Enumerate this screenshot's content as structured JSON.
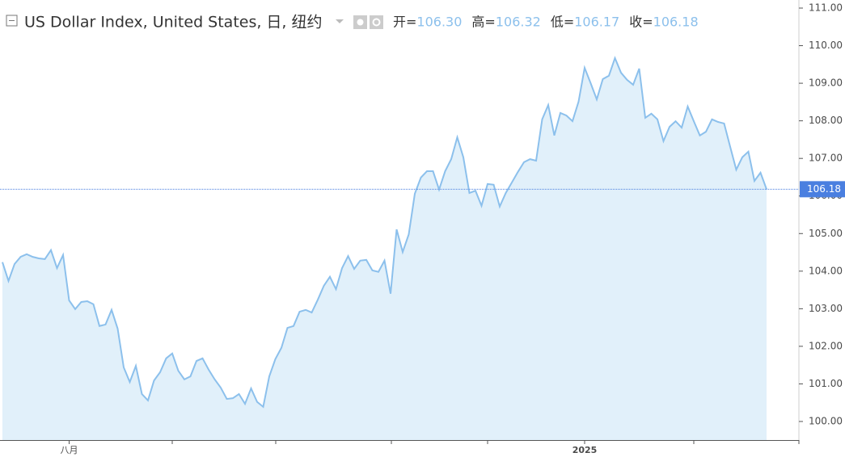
{
  "chart_data": {
    "type": "area",
    "title": "US Dollar Index, United States, 日, 纽约",
    "ohlc": [
      {
        "label": "开=",
        "value": "106.30"
      },
      {
        "label": "高=",
        "value": "106.32"
      },
      {
        "label": "低=",
        "value": "106.17"
      },
      {
        "label": "收=",
        "value": "106.18"
      }
    ],
    "categories": [
      null,
      null,
      null,
      null,
      null,
      null,
      null,
      null,
      null,
      null,
      null,
      "八月",
      null,
      null,
      null,
      null,
      null,
      null,
      null,
      null,
      null,
      null,
      null,
      null,
      null,
      null,
      null,
      null,
      null,
      null,
      null,
      null,
      null,
      null,
      null,
      null,
      null,
      null,
      null,
      null,
      null,
      null,
      null,
      null,
      null,
      null,
      null,
      null,
      null,
      null,
      null,
      null,
      null,
      null,
      null,
      null,
      null,
      null,
      null,
      null,
      null,
      null,
      null,
      null,
      null,
      null,
      null,
      null,
      null,
      null,
      null,
      null,
      null,
      null,
      null,
      null,
      null,
      null,
      null,
      null,
      null,
      null,
      null,
      null,
      null,
      null,
      null,
      null,
      null,
      null,
      null,
      null,
      null,
      null,
      null,
      null,
      "2025",
      null,
      null,
      null,
      null,
      null,
      null,
      null,
      null,
      null,
      null,
      null,
      null,
      null,
      null,
      null,
      null,
      null,
      null,
      null,
      null,
      null,
      null,
      null,
      null,
      null,
      null,
      null,
      null,
      null,
      null
    ],
    "values": [
      104.24,
      103.74,
      104.19,
      104.38,
      104.45,
      104.38,
      104.34,
      104.32,
      104.56,
      104.08,
      104.43,
      103.22,
      102.99,
      103.18,
      103.2,
      103.12,
      102.54,
      102.58,
      102.97,
      102.47,
      101.44,
      101.05,
      101.48,
      100.73,
      100.56,
      101.09,
      101.31,
      101.68,
      101.81,
      101.35,
      101.12,
      101.2,
      101.61,
      101.68,
      101.38,
      101.12,
      100.9,
      100.6,
      100.62,
      100.73,
      100.47,
      100.88,
      100.52,
      100.39,
      101.2,
      101.66,
      101.96,
      102.49,
      102.54,
      102.92,
      102.97,
      102.9,
      103.24,
      103.61,
      103.85,
      103.52,
      104.08,
      104.4,
      104.06,
      104.28,
      104.3,
      104.02,
      103.98,
      104.28,
      103.4,
      105.11,
      104.51,
      104.98,
      106.06,
      106.49,
      106.66,
      106.66,
      106.17,
      106.66,
      106.98,
      107.56,
      107.03,
      106.08,
      106.14,
      105.74,
      106.32,
      106.3,
      105.72,
      106.08,
      106.36,
      106.64,
      106.9,
      106.98,
      106.94,
      108.04,
      108.42,
      107.61,
      108.21,
      108.14,
      107.99,
      108.51,
      109.41,
      109.0,
      108.57,
      109.11,
      109.2,
      109.67,
      109.28,
      109.09,
      108.96,
      109.39,
      108.08,
      108.19,
      108.04,
      107.46,
      107.84,
      107.99,
      107.82,
      108.38,
      107.99,
      107.61,
      107.71,
      108.04,
      107.97,
      107.93,
      107.31,
      106.7,
      107.03,
      107.18,
      106.4,
      106.62,
      106.18
    ],
    "color": "#8cc0ec",
    "fill_color": "#e1f0fa",
    "ylim": [
      99.7,
      111.2
    ],
    "yticks": [
      {
        "value": 100,
        "label": "100.00"
      },
      {
        "value": 101,
        "label": "101.00"
      },
      {
        "value": 102,
        "label": "102.00"
      },
      {
        "value": 103,
        "label": "103.00"
      },
      {
        "value": 104,
        "label": "104.00"
      },
      {
        "value": 105,
        "label": "105.00"
      },
      {
        "value": 106,
        "label": "106.00"
      },
      {
        "value": 107,
        "label": "107.00"
      },
      {
        "value": 108,
        "label": "108.00"
      },
      {
        "value": 109,
        "label": "109.00"
      },
      {
        "value": 110,
        "label": "110.00"
      },
      {
        "value": 111,
        "label": "111.00"
      }
    ]
  }
}
